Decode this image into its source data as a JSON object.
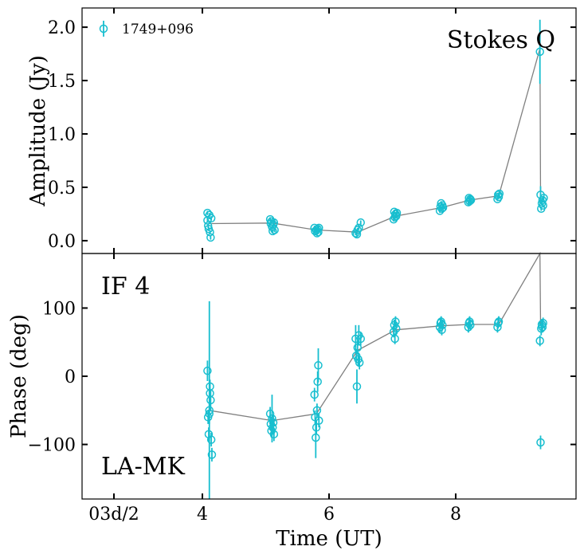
{
  "chart_data": [
    {
      "type": "scatter",
      "panel": "top",
      "ylabel": "Amplitude (Jy)",
      "annotation": "Stokes Q",
      "legend": {
        "label": "1749+096",
        "placement": "top-left"
      },
      "xlim": [
        2.1,
        9.9
      ],
      "ylim": [
        -0.12,
        2.18
      ],
      "yticks": [
        0.0,
        0.5,
        1.0,
        1.5,
        2.0
      ],
      "ytick_labels": [
        "0.0",
        "0.5",
        "1.0",
        "1.5",
        "2.0"
      ],
      "points": [
        {
          "x": 4.08,
          "y": 0.26,
          "err": 0.02
        },
        {
          "x": 4.08,
          "y": 0.19,
          "err": 0.02
        },
        {
          "x": 4.09,
          "y": 0.14,
          "err": 0.02
        },
        {
          "x": 4.1,
          "y": 0.11,
          "err": 0.02
        },
        {
          "x": 4.11,
          "y": 0.24,
          "err": 0.02
        },
        {
          "x": 4.12,
          "y": 0.08,
          "err": 0.02
        },
        {
          "x": 4.13,
          "y": 0.03,
          "err": 0.02
        },
        {
          "x": 4.14,
          "y": 0.21,
          "err": 0.02
        },
        {
          "x": 5.07,
          "y": 0.2,
          "err": 0.02
        },
        {
          "x": 5.08,
          "y": 0.16,
          "err": 0.02
        },
        {
          "x": 5.09,
          "y": 0.18,
          "err": 0.02
        },
        {
          "x": 5.1,
          "y": 0.13,
          "err": 0.02
        },
        {
          "x": 5.11,
          "y": 0.09,
          "err": 0.02
        },
        {
          "x": 5.12,
          "y": 0.15,
          "err": 0.02
        },
        {
          "x": 5.13,
          "y": 0.17,
          "err": 0.02
        },
        {
          "x": 5.14,
          "y": 0.1,
          "err": 0.02
        },
        {
          "x": 5.77,
          "y": 0.12,
          "err": 0.02
        },
        {
          "x": 5.78,
          "y": 0.09,
          "err": 0.02
        },
        {
          "x": 5.8,
          "y": 0.1,
          "err": 0.02
        },
        {
          "x": 5.81,
          "y": 0.07,
          "err": 0.02
        },
        {
          "x": 5.82,
          "y": 0.11,
          "err": 0.02
        },
        {
          "x": 5.83,
          "y": 0.08,
          "err": 0.02
        },
        {
          "x": 5.84,
          "y": 0.12,
          "err": 0.02
        },
        {
          "x": 6.42,
          "y": 0.07,
          "err": 0.02
        },
        {
          "x": 6.44,
          "y": 0.06,
          "err": 0.02
        },
        {
          "x": 6.45,
          "y": 0.1,
          "err": 0.02
        },
        {
          "x": 6.47,
          "y": 0.12,
          "err": 0.02
        },
        {
          "x": 6.5,
          "y": 0.17,
          "err": 0.02
        },
        {
          "x": 7.02,
          "y": 0.2,
          "err": 0.02
        },
        {
          "x": 7.03,
          "y": 0.27,
          "err": 0.02
        },
        {
          "x": 7.04,
          "y": 0.22,
          "err": 0.02
        },
        {
          "x": 7.05,
          "y": 0.25,
          "err": 0.02
        },
        {
          "x": 7.06,
          "y": 0.23,
          "err": 0.02
        },
        {
          "x": 7.07,
          "y": 0.26,
          "err": 0.02
        },
        {
          "x": 7.75,
          "y": 0.28,
          "err": 0.02
        },
        {
          "x": 7.76,
          "y": 0.32,
          "err": 0.02
        },
        {
          "x": 7.77,
          "y": 0.35,
          "err": 0.02
        },
        {
          "x": 7.78,
          "y": 0.3,
          "err": 0.02
        },
        {
          "x": 7.79,
          "y": 0.33,
          "err": 0.02
        },
        {
          "x": 7.8,
          "y": 0.31,
          "err": 0.02
        },
        {
          "x": 8.2,
          "y": 0.36,
          "err": 0.02
        },
        {
          "x": 8.21,
          "y": 0.4,
          "err": 0.02
        },
        {
          "x": 8.22,
          "y": 0.37,
          "err": 0.02
        },
        {
          "x": 8.23,
          "y": 0.39,
          "err": 0.02
        },
        {
          "x": 8.24,
          "y": 0.38,
          "err": 0.02
        },
        {
          "x": 8.66,
          "y": 0.39,
          "err": 0.02
        },
        {
          "x": 8.67,
          "y": 0.43,
          "err": 0.02
        },
        {
          "x": 8.68,
          "y": 0.41,
          "err": 0.02
        },
        {
          "x": 8.69,
          "y": 0.44,
          "err": 0.02
        },
        {
          "x": 9.33,
          "y": 1.77,
          "err": 0.3
        },
        {
          "x": 9.34,
          "y": 0.43,
          "err": 0.08
        },
        {
          "x": 9.35,
          "y": 0.3,
          "err": 0.02
        },
        {
          "x": 9.36,
          "y": 0.35,
          "err": 0.02
        },
        {
          "x": 9.37,
          "y": 0.38,
          "err": 0.02
        },
        {
          "x": 9.38,
          "y": 0.33,
          "err": 0.02
        },
        {
          "x": 9.39,
          "y": 0.4,
          "err": 0.02
        }
      ],
      "mean_line": {
        "x": [
          4.1,
          5.1,
          5.8,
          6.45,
          7.05,
          7.78,
          8.22,
          8.68,
          9.33,
          9.34
        ],
        "y": [
          0.16,
          0.165,
          0.1,
          0.08,
          0.23,
          0.31,
          0.38,
          0.42,
          1.8,
          0.38
        ]
      }
    },
    {
      "type": "scatter",
      "panel": "bottom",
      "ylabel": "Phase (deg)",
      "xlabel": "Time (UT)",
      "annotations": [
        "IF 4",
        "LA-MK"
      ],
      "xlim": [
        2.1,
        9.9
      ],
      "ylim": [
        -180,
        180
      ],
      "yticks": [
        -100,
        0,
        100
      ],
      "ytick_labels": [
        "−100",
        "0",
        "100"
      ],
      "xticks": [
        2.0,
        4,
        6,
        8
      ],
      "xtick_labels": [
        "03d/2",
        "4",
        "6",
        "8"
      ],
      "points": [
        {
          "x": 4.08,
          "y": 8,
          "err": 15
        },
        {
          "x": 4.09,
          "y": -60,
          "err": 10
        },
        {
          "x": 4.1,
          "y": -85,
          "err": 10
        },
        {
          "x": 4.11,
          "y": -50,
          "err": 160
        },
        {
          "x": 4.12,
          "y": -15,
          "err": 10
        },
        {
          "x": 4.13,
          "y": -35,
          "err": 15
        },
        {
          "x": 4.14,
          "y": -93,
          "err": 10
        },
        {
          "x": 4.15,
          "y": -115,
          "err": 10
        },
        {
          "x": 4.11,
          "y": -55,
          "err": 15
        },
        {
          "x": 4.12,
          "y": -25,
          "err": 10
        },
        {
          "x": 5.07,
          "y": -55,
          "err": 10
        },
        {
          "x": 5.08,
          "y": -70,
          "err": 10
        },
        {
          "x": 5.09,
          "y": -80,
          "err": 10
        },
        {
          "x": 5.1,
          "y": -62,
          "err": 35
        },
        {
          "x": 5.11,
          "y": -75,
          "err": 10
        },
        {
          "x": 5.12,
          "y": -68,
          "err": 10
        },
        {
          "x": 5.13,
          "y": -85,
          "err": 10
        },
        {
          "x": 5.77,
          "y": -27,
          "err": 10
        },
        {
          "x": 5.78,
          "y": -60,
          "err": 10
        },
        {
          "x": 5.79,
          "y": -90,
          "err": 30
        },
        {
          "x": 5.8,
          "y": -75,
          "err": 10
        },
        {
          "x": 5.81,
          "y": -50,
          "err": 10
        },
        {
          "x": 5.82,
          "y": -8,
          "err": 15
        },
        {
          "x": 5.83,
          "y": 16,
          "err": 25
        },
        {
          "x": 5.84,
          "y": -65,
          "err": 10
        },
        {
          "x": 6.42,
          "y": 55,
          "err": 20
        },
        {
          "x": 6.43,
          "y": 30,
          "err": 10
        },
        {
          "x": 6.44,
          "y": -15,
          "err": 25
        },
        {
          "x": 6.45,
          "y": 42,
          "err": 10
        },
        {
          "x": 6.46,
          "y": 25,
          "err": 10
        },
        {
          "x": 6.47,
          "y": 60,
          "err": 15
        },
        {
          "x": 6.48,
          "y": 20,
          "err": 10
        },
        {
          "x": 6.5,
          "y": 55,
          "err": 10
        },
        {
          "x": 7.02,
          "y": 65,
          "err": 8
        },
        {
          "x": 7.03,
          "y": 75,
          "err": 8
        },
        {
          "x": 7.04,
          "y": 55,
          "err": 8
        },
        {
          "x": 7.05,
          "y": 80,
          "err": 8
        },
        {
          "x": 7.06,
          "y": 70,
          "err": 8
        },
        {
          "x": 7.75,
          "y": 72,
          "err": 8
        },
        {
          "x": 7.76,
          "y": 78,
          "err": 8
        },
        {
          "x": 7.77,
          "y": 80,
          "err": 8
        },
        {
          "x": 7.78,
          "y": 68,
          "err": 8
        },
        {
          "x": 7.79,
          "y": 75,
          "err": 8
        },
        {
          "x": 8.2,
          "y": 72,
          "err": 8
        },
        {
          "x": 8.21,
          "y": 78,
          "err": 8
        },
        {
          "x": 8.22,
          "y": 80,
          "err": 8
        },
        {
          "x": 8.23,
          "y": 75,
          "err": 8
        },
        {
          "x": 8.66,
          "y": 72,
          "err": 8
        },
        {
          "x": 8.67,
          "y": 78,
          "err": 8
        },
        {
          "x": 8.68,
          "y": 80,
          "err": 8
        },
        {
          "x": 9.33,
          "y": 52,
          "err": 8
        },
        {
          "x": 9.34,
          "y": -97,
          "err": 10
        },
        {
          "x": 9.35,
          "y": 70,
          "err": 10
        },
        {
          "x": 9.36,
          "y": 76,
          "err": 8
        },
        {
          "x": 9.37,
          "y": 72,
          "err": 8
        },
        {
          "x": 9.38,
          "y": 78,
          "err": 8
        }
      ],
      "mean_line": {
        "x": [
          4.1,
          5.1,
          5.8,
          6.45,
          7.05,
          7.78,
          8.22,
          8.68,
          9.33,
          9.34
        ],
        "y": [
          -50,
          -65,
          -55,
          38,
          68,
          74,
          76,
          76,
          180,
          75
        ]
      }
    }
  ],
  "style": {
    "marker_color": "#17becf",
    "line_color": "#808080"
  }
}
